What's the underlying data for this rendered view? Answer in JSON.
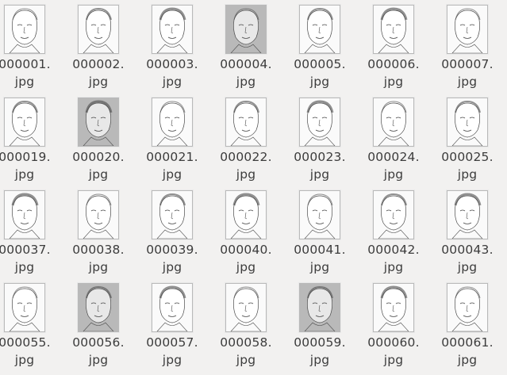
{
  "files": [
    {
      "line1": "000001.",
      "line2": "jpg",
      "tone": "light"
    },
    {
      "line1": "000002.",
      "line2": "jpg",
      "tone": "light"
    },
    {
      "line1": "000003.",
      "line2": "jpg",
      "tone": "light"
    },
    {
      "line1": "000004.",
      "line2": "jpg",
      "tone": "dark"
    },
    {
      "line1": "000005.",
      "line2": "jpg",
      "tone": "light"
    },
    {
      "line1": "000006.",
      "line2": "jpg",
      "tone": "light"
    },
    {
      "line1": "000007.",
      "line2": "jpg",
      "tone": "light"
    },
    {
      "line1": "000019.",
      "line2": "jpg",
      "tone": "light"
    },
    {
      "line1": "000020.",
      "line2": "jpg",
      "tone": "dark"
    },
    {
      "line1": "000021.",
      "line2": "jpg",
      "tone": "light"
    },
    {
      "line1": "000022.",
      "line2": "jpg",
      "tone": "light"
    },
    {
      "line1": "000023.",
      "line2": "jpg",
      "tone": "light"
    },
    {
      "line1": "000024.",
      "line2": "jpg",
      "tone": "light"
    },
    {
      "line1": "000025.",
      "line2": "jpg",
      "tone": "light"
    },
    {
      "line1": "000037.",
      "line2": "jpg",
      "tone": "light"
    },
    {
      "line1": "000038.",
      "line2": "jpg",
      "tone": "light"
    },
    {
      "line1": "000039.",
      "line2": "jpg",
      "tone": "light"
    },
    {
      "line1": "000040.",
      "line2": "jpg",
      "tone": "light"
    },
    {
      "line1": "000041.",
      "line2": "jpg",
      "tone": "light"
    },
    {
      "line1": "000042.",
      "line2": "jpg",
      "tone": "light"
    },
    {
      "line1": "000043.",
      "line2": "jpg",
      "tone": "light"
    },
    {
      "line1": "000055.",
      "line2": "jpg",
      "tone": "light"
    },
    {
      "line1": "000056.",
      "line2": "jpg",
      "tone": "dark"
    },
    {
      "line1": "000057.",
      "line2": "jpg",
      "tone": "light"
    },
    {
      "line1": "000058.",
      "line2": "jpg",
      "tone": "light"
    },
    {
      "line1": "000059.",
      "line2": "jpg",
      "tone": "dark"
    },
    {
      "line1": "000060.",
      "line2": "jpg",
      "tone": "light"
    },
    {
      "line1": "000061.",
      "line2": "jpg",
      "tone": "light"
    }
  ],
  "colors": {
    "background": "#f2f1f0",
    "label": "#3c3c3c",
    "thumb_border": "#b9b9b9"
  }
}
